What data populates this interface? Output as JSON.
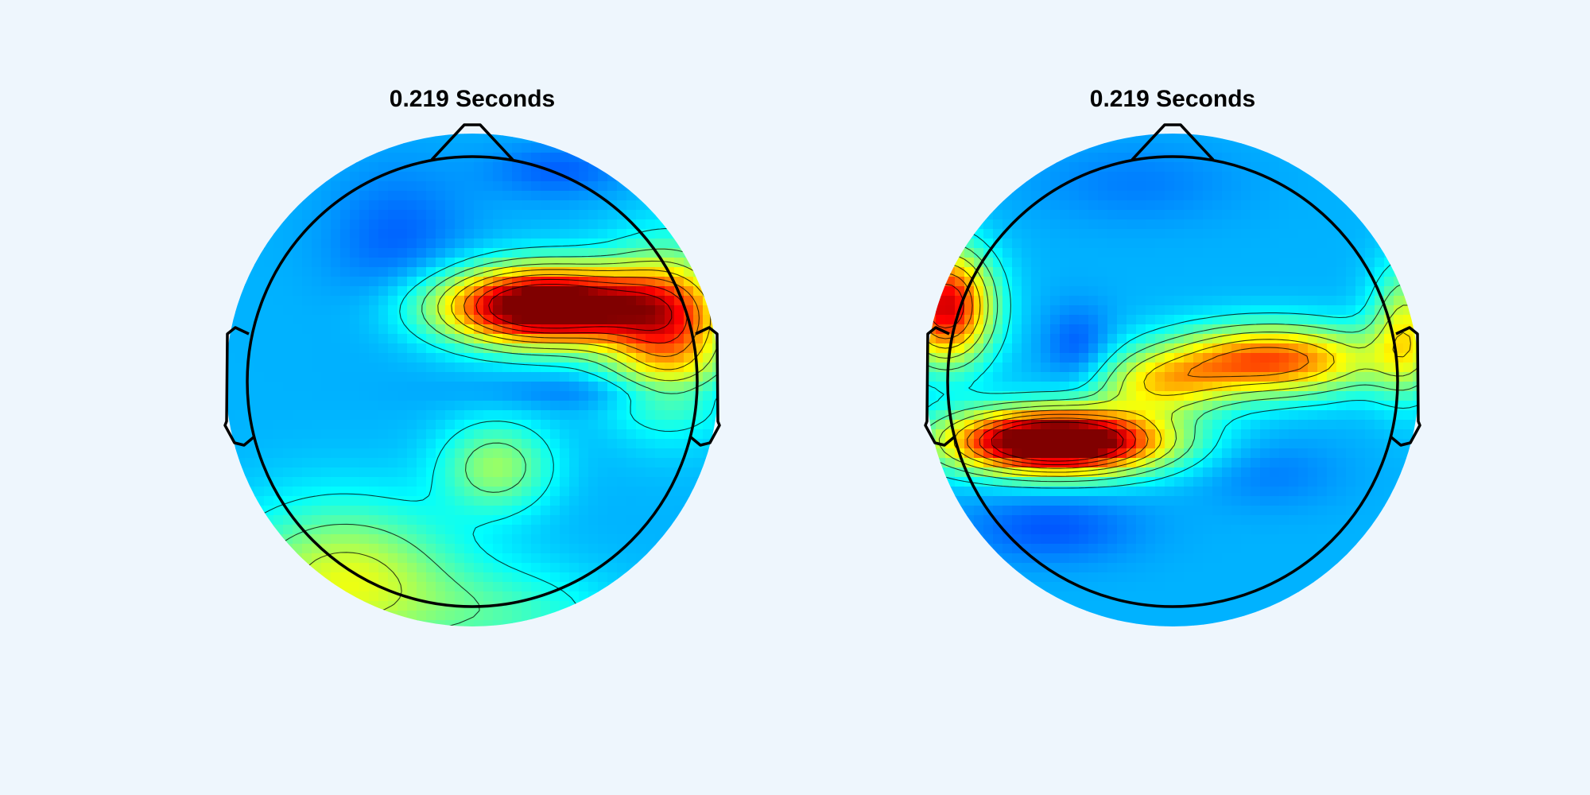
{
  "chart_data": [
    {
      "type": "heatmap",
      "subtype": "eeg-topographic-map",
      "title": "0.219 Seconds",
      "colormap": "jet",
      "grid": false,
      "contours": true,
      "blobs": [
        {
          "u": 0.3,
          "v": 0.3,
          "su": 0.3,
          "sv": 0.11,
          "amp": 0.85
        },
        {
          "u": 0.8,
          "v": 0.2,
          "su": 0.18,
          "sv": 0.22,
          "amp": 0.45
        },
        {
          "u": 0.1,
          "v": -0.35,
          "su": 0.16,
          "sv": 0.13,
          "amp": 0.22
        },
        {
          "u": -0.52,
          "v": -0.82,
          "su": 0.32,
          "sv": 0.22,
          "amp": 0.3
        },
        {
          "u": 0.15,
          "v": -0.95,
          "su": 0.3,
          "sv": 0.14,
          "amp": 0.12
        },
        {
          "u": -0.3,
          "v": 0.55,
          "su": 0.2,
          "sv": 0.22,
          "amp": -0.08
        },
        {
          "u": 0.35,
          "v": 0.85,
          "su": 0.2,
          "sv": 0.08,
          "amp": -0.08
        },
        {
          "u": 0.6,
          "v": -0.05,
          "su": 0.4,
          "sv": 0.05,
          "amp": -0.07
        }
      ]
    },
    {
      "type": "heatmap",
      "subtype": "eeg-topographic-map",
      "title": "0.219 Seconds",
      "colormap": "jet",
      "grid": false,
      "contours": true,
      "blobs": [
        {
          "u": -0.47,
          "v": -0.25,
          "su": 0.3,
          "sv": 0.09,
          "amp": 0.92
        },
        {
          "u": -0.92,
          "v": 0.3,
          "su": 0.13,
          "sv": 0.16,
          "amp": 0.62
        },
        {
          "u": 0.4,
          "v": 0.08,
          "su": 0.3,
          "sv": 0.1,
          "amp": 0.5
        },
        {
          "u": -0.05,
          "v": -0.02,
          "su": 0.2,
          "sv": 0.09,
          "amp": 0.28
        },
        {
          "u": 0.95,
          "v": 0.2,
          "su": 0.1,
          "sv": 0.18,
          "amp": 0.3
        },
        {
          "u": -0.38,
          "v": 0.12,
          "su": 0.1,
          "sv": 0.12,
          "amp": -0.1
        },
        {
          "u": -0.5,
          "v": -0.6,
          "su": 0.25,
          "sv": 0.1,
          "amp": -0.09
        },
        {
          "u": 0.4,
          "v": -0.38,
          "su": 0.2,
          "sv": 0.1,
          "amp": -0.05
        },
        {
          "u": -0.15,
          "v": 0.8,
          "su": 0.3,
          "sv": 0.12,
          "amp": -0.05
        }
      ]
    }
  ]
}
